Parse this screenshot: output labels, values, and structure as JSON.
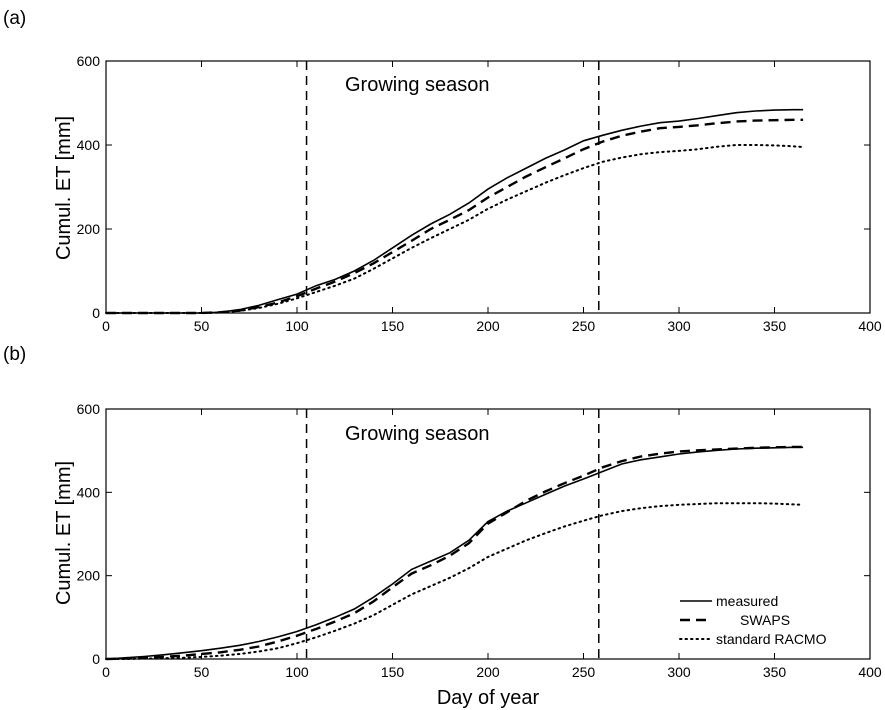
{
  "chart_data": [
    {
      "type": "line",
      "panel_label": "(a)",
      "annotation": "Growing season",
      "xlabel": "",
      "ylabel": "Cumul. ET [mm]",
      "xlim": [
        0,
        400
      ],
      "ylim": [
        0,
        600
      ],
      "xticks": [
        "0",
        "50",
        "100",
        "150",
        "200",
        "250",
        "300",
        "350",
        "400"
      ],
      "yticks": [
        "0",
        "200",
        "400",
        "600"
      ],
      "vertical_lines": [
        105,
        258
      ],
      "legend": false,
      "series": [
        {
          "name": "measured",
          "style": "solid",
          "x": [
            0,
            50,
            60,
            70,
            80,
            90,
            100,
            110,
            120,
            130,
            140,
            150,
            160,
            170,
            180,
            190,
            200,
            210,
            220,
            230,
            240,
            250,
            260,
            270,
            280,
            290,
            300,
            310,
            320,
            330,
            340,
            350,
            360,
            365
          ],
          "y": [
            0,
            0,
            2,
            8,
            18,
            32,
            45,
            65,
            80,
            100,
            125,
            155,
            185,
            212,
            235,
            262,
            295,
            322,
            345,
            368,
            388,
            410,
            423,
            435,
            445,
            453,
            457,
            463,
            470,
            477,
            481,
            483,
            484,
            484
          ]
        },
        {
          "name": "SWAPS",
          "style": "dashed",
          "x": [
            0,
            50,
            60,
            70,
            80,
            90,
            100,
            110,
            120,
            130,
            140,
            150,
            160,
            170,
            180,
            190,
            200,
            210,
            220,
            230,
            240,
            250,
            260,
            270,
            280,
            290,
            300,
            310,
            320,
            330,
            340,
            350,
            360,
            365
          ],
          "y": [
            0,
            0,
            2,
            6,
            14,
            25,
            40,
            58,
            75,
            95,
            118,
            145,
            172,
            200,
            222,
            245,
            275,
            300,
            325,
            347,
            368,
            390,
            408,
            422,
            432,
            440,
            443,
            447,
            452,
            456,
            458,
            459,
            460,
            460
          ]
        },
        {
          "name": "standard RACMO",
          "style": "dotted",
          "x": [
            0,
            50,
            60,
            70,
            80,
            90,
            100,
            110,
            120,
            130,
            140,
            150,
            160,
            170,
            180,
            190,
            200,
            210,
            220,
            230,
            240,
            250,
            260,
            270,
            280,
            290,
            300,
            310,
            320,
            330,
            340,
            350,
            360,
            365
          ],
          "y": [
            0,
            0,
            1,
            5,
            12,
            22,
            35,
            50,
            65,
            82,
            105,
            130,
            155,
            178,
            200,
            222,
            248,
            270,
            290,
            310,
            328,
            345,
            360,
            370,
            378,
            383,
            386,
            390,
            396,
            400,
            400,
            399,
            397,
            395
          ]
        }
      ]
    },
    {
      "type": "line",
      "panel_label": "(b)",
      "annotation": "Growing season",
      "xlabel": "Day of year",
      "ylabel": "Cumul. ET [mm]",
      "xlim": [
        0,
        400
      ],
      "ylim": [
        0,
        600
      ],
      "xticks": [
        "0",
        "50",
        "100",
        "150",
        "200",
        "250",
        "300",
        "350",
        "400"
      ],
      "yticks": [
        "0",
        "200",
        "400",
        "600"
      ],
      "vertical_lines": [
        105,
        258
      ],
      "legend": true,
      "legend_position": "bottom-right",
      "series": [
        {
          "name": "measured",
          "style": "solid",
          "x": [
            0,
            10,
            20,
            30,
            40,
            50,
            60,
            70,
            80,
            90,
            100,
            110,
            120,
            130,
            140,
            150,
            160,
            170,
            180,
            190,
            200,
            210,
            220,
            230,
            240,
            250,
            260,
            270,
            280,
            290,
            300,
            310,
            320,
            330,
            340,
            350,
            360,
            365
          ],
          "y": [
            0,
            3,
            6,
            10,
            15,
            20,
            26,
            33,
            42,
            53,
            66,
            82,
            100,
            120,
            148,
            180,
            215,
            235,
            255,
            285,
            330,
            355,
            375,
            395,
            415,
            432,
            450,
            468,
            478,
            485,
            492,
            497,
            501,
            504,
            506,
            507,
            508,
            508
          ]
        },
        {
          "name": "SWAPS",
          "style": "dashed",
          "x": [
            0,
            10,
            20,
            30,
            40,
            50,
            60,
            70,
            80,
            90,
            100,
            110,
            120,
            130,
            140,
            150,
            160,
            170,
            180,
            190,
            200,
            210,
            220,
            230,
            240,
            250,
            260,
            270,
            280,
            290,
            300,
            310,
            320,
            330,
            340,
            350,
            360,
            365
          ],
          "y": [
            0,
            1,
            3,
            5,
            8,
            12,
            16,
            22,
            30,
            42,
            56,
            72,
            90,
            110,
            138,
            172,
            205,
            225,
            248,
            278,
            325,
            352,
            380,
            402,
            422,
            440,
            460,
            475,
            486,
            493,
            498,
            501,
            503,
            505,
            507,
            508,
            509,
            509
          ]
        },
        {
          "name": "standard RACMO",
          "style": "dotted",
          "x": [
            0,
            10,
            20,
            30,
            40,
            50,
            60,
            70,
            80,
            90,
            100,
            110,
            120,
            130,
            140,
            150,
            160,
            170,
            180,
            190,
            200,
            210,
            220,
            230,
            240,
            250,
            260,
            270,
            280,
            290,
            300,
            310,
            320,
            330,
            340,
            350,
            360,
            365
          ],
          "y": [
            0,
            0,
            1,
            2,
            3,
            5,
            8,
            12,
            18,
            26,
            38,
            52,
            68,
            85,
            105,
            130,
            155,
            175,
            195,
            218,
            245,
            265,
            285,
            302,
            318,
            332,
            345,
            355,
            362,
            367,
            370,
            372,
            374,
            374,
            374,
            373,
            371,
            370
          ]
        }
      ]
    }
  ]
}
